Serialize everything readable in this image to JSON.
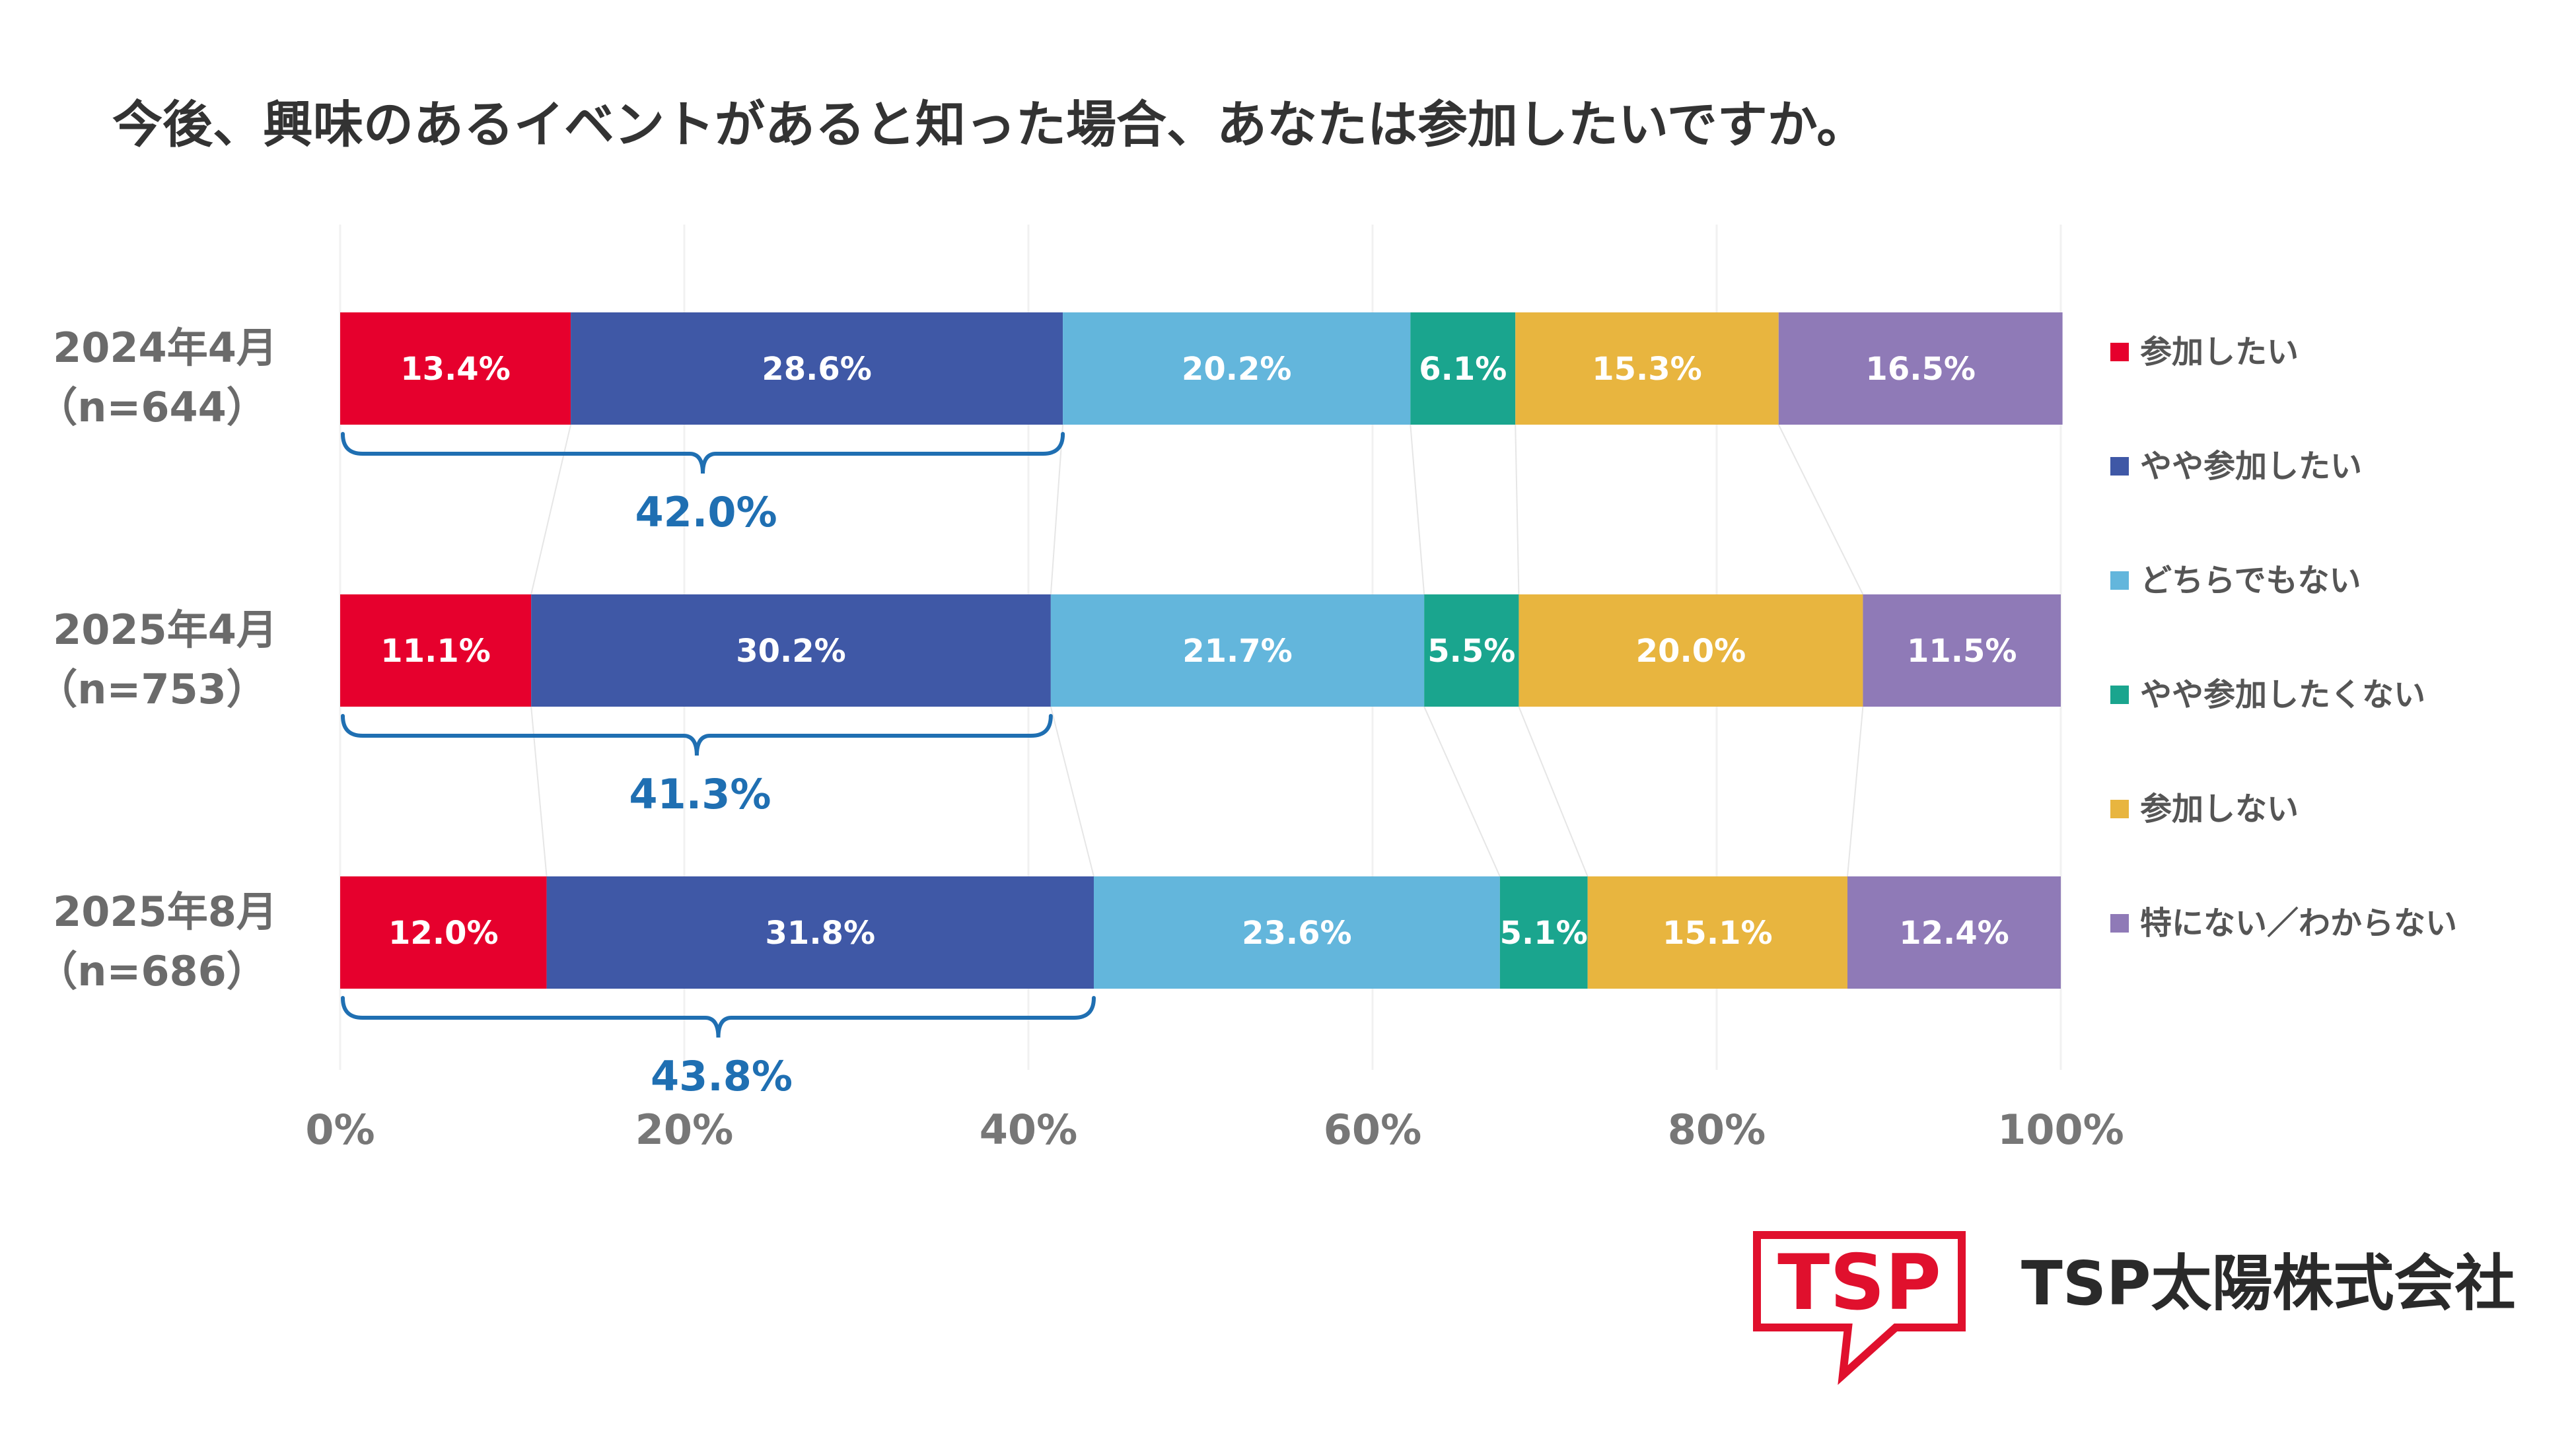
{
  "colors": {
    "background": "#ffffff",
    "text_dark": "#333333",
    "text_gray": "#6b6b6b",
    "bracket": "#1f6fb2",
    "brand_red": "#e0102d",
    "logo_text": "#2a2a2a"
  },
  "chart_data": {
    "type": "bar",
    "orientation": "horizontal",
    "stacked": true,
    "title": "今後、興味のあるイベントがあると知った場合、あなたは参加したいですか。",
    "categories": [
      {
        "label": "2024年4月",
        "n": "（n=644）"
      },
      {
        "label": "2025年4月",
        "n": "（n=753）"
      },
      {
        "label": "2025年8月",
        "n": "（n=686）"
      }
    ],
    "series": [
      {
        "name": "参加したい",
        "color": "#e6002d",
        "values": [
          13.4,
          11.1,
          12.0
        ],
        "labels": [
          "13.4%",
          "11.1%",
          "12.0%"
        ]
      },
      {
        "name": "やや参加したい",
        "color": "#3f58a6",
        "values": [
          28.6,
          30.2,
          31.8
        ],
        "labels": [
          "28.6%",
          "30.2%",
          "31.8%"
        ]
      },
      {
        "name": "どちらでもない",
        "color": "#63b6dc",
        "values": [
          20.2,
          21.7,
          23.6
        ],
        "labels": [
          "20.2%",
          "21.7%",
          "23.6%"
        ]
      },
      {
        "name": "やや参加したくない",
        "color": "#1aa58e",
        "values": [
          6.1,
          5.5,
          5.1
        ],
        "labels": [
          "6.1%",
          "5.5%",
          "5.1%"
        ]
      },
      {
        "name": "参加しない",
        "color": "#e8b53f",
        "values": [
          15.3,
          20.0,
          15.1
        ],
        "labels": [
          "15.3%",
          "20.0%",
          "15.1%"
        ]
      },
      {
        "name": "特にない／わからない",
        "color": "#8f7ab7",
        "values": [
          16.5,
          11.5,
          12.4
        ],
        "labels": [
          "16.5%",
          "11.5%",
          "12.4%"
        ]
      }
    ],
    "bracket_totals": [
      "42.0%",
      "41.3%",
      "43.8%"
    ],
    "x_ticks": [
      "0%",
      "20%",
      "40%",
      "60%",
      "80%",
      "100%"
    ],
    "xlim": [
      0,
      100
    ],
    "legend_position": "right"
  },
  "logo": {
    "mark_text": "TSP",
    "company_name": "TSP太陽株式会社"
  }
}
